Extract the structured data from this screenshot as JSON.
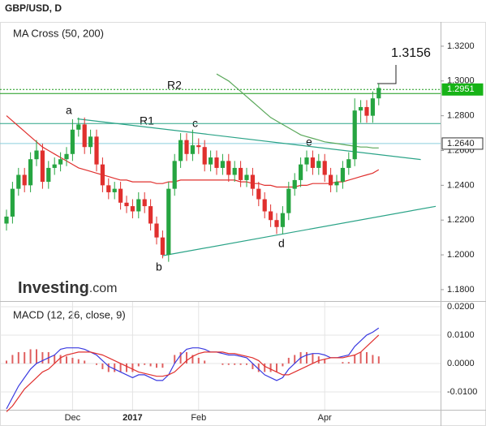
{
  "chart_data": {
    "type": "candlestick",
    "title": "GBP/USD, D",
    "indicator_title": "MA Cross (50, 200)",
    "macd_title": "MACD (12, 26, close, 9)",
    "logo": [
      "Investing",
      ".com"
    ],
    "annotations": [
      "a",
      "b",
      "c",
      "d",
      "e",
      "R1",
      "R2",
      "1.3156"
    ],
    "categories": [
      null,
      null,
      null,
      null,
      null,
      null,
      null,
      null,
      null,
      null,
      null,
      "Dec",
      null,
      null,
      null,
      null,
      null,
      null,
      null,
      null,
      null,
      "2017",
      null,
      null,
      null,
      null,
      null,
      null,
      null,
      null,
      null,
      null,
      "Feb",
      null,
      null,
      null,
      null,
      null,
      null,
      null,
      null,
      null,
      null,
      null,
      null,
      null,
      null,
      null,
      null,
      null,
      null,
      null,
      null,
      "Apr",
      null,
      null,
      null,
      null,
      null,
      null,
      null,
      null,
      null
    ],
    "up_color": "#26a541",
    "down_color": "#e0302e",
    "candles": [
      [
        1.218,
        1.226,
        1.214,
        1.222
      ],
      [
        1.222,
        1.242,
        1.218,
        1.238
      ],
      [
        1.238,
        1.25,
        1.234,
        1.246
      ],
      [
        1.246,
        1.25,
        1.236,
        1.24
      ],
      [
        1.24,
        1.259,
        1.236,
        1.255
      ],
      [
        1.255,
        1.266,
        1.251,
        1.26
      ],
      [
        1.26,
        1.264,
        1.238,
        1.242
      ],
      [
        1.242,
        1.254,
        1.238,
        1.25
      ],
      [
        1.25,
        1.256,
        1.246,
        1.252
      ],
      [
        1.252,
        1.259,
        1.248,
        1.255
      ],
      [
        1.255,
        1.262,
        1.251,
        1.258
      ],
      [
        1.258,
        1.278,
        1.254,
        1.272
      ],
      [
        1.272,
        1.279,
        1.268,
        1.275
      ],
      [
        1.275,
        1.279,
        1.258,
        1.262
      ],
      [
        1.262,
        1.272,
        1.258,
        1.268
      ],
      [
        1.268,
        1.272,
        1.248,
        1.252
      ],
      [
        1.252,
        1.256,
        1.236,
        1.24
      ],
      [
        1.24,
        1.244,
        1.232,
        1.236
      ],
      [
        1.236,
        1.242,
        1.232,
        1.238
      ],
      [
        1.238,
        1.242,
        1.226,
        1.23
      ],
      [
        1.23,
        1.234,
        1.224,
        1.228
      ],
      [
        1.228,
        1.232,
        1.221,
        1.225
      ],
      [
        1.225,
        1.236,
        1.221,
        1.232
      ],
      [
        1.232,
        1.236,
        1.224,
        1.228
      ],
      [
        1.228,
        1.232,
        1.214,
        1.218
      ],
      [
        1.218,
        1.222,
        1.206,
        1.21
      ],
      [
        1.21,
        1.214,
        1.198,
        1.2
      ],
      [
        1.2,
        1.242,
        1.196,
        1.238
      ],
      [
        1.238,
        1.258,
        1.234,
        1.254
      ],
      [
        1.254,
        1.27,
        1.25,
        1.266
      ],
      [
        1.266,
        1.27,
        1.254,
        1.258
      ],
      [
        1.258,
        1.272,
        1.254,
        1.263
      ],
      [
        1.263,
        1.267,
        1.258,
        1.262
      ],
      [
        1.262,
        1.266,
        1.248,
        1.252
      ],
      [
        1.252,
        1.26,
        1.248,
        1.256
      ],
      [
        1.256,
        1.26,
        1.246,
        1.25
      ],
      [
        1.25,
        1.258,
        1.246,
        1.254
      ],
      [
        1.254,
        1.258,
        1.242,
        1.246
      ],
      [
        1.246,
        1.254,
        1.242,
        1.25
      ],
      [
        1.25,
        1.254,
        1.239,
        1.243
      ],
      [
        1.243,
        1.25,
        1.239,
        1.246
      ],
      [
        1.246,
        1.25,
        1.234,
        1.238
      ],
      [
        1.238,
        1.242,
        1.228,
        1.232
      ],
      [
        1.232,
        1.236,
        1.221,
        1.225
      ],
      [
        1.225,
        1.229,
        1.216,
        1.22
      ],
      [
        1.22,
        1.224,
        1.212,
        1.216
      ],
      [
        1.216,
        1.228,
        1.212,
        1.224
      ],
      [
        1.224,
        1.242,
        1.22,
        1.238
      ],
      [
        1.238,
        1.247,
        1.234,
        1.243
      ],
      [
        1.243,
        1.256,
        1.239,
        1.252
      ],
      [
        1.252,
        1.26,
        1.248,
        1.256
      ],
      [
        1.256,
        1.26,
        1.246,
        1.25
      ],
      [
        1.25,
        1.258,
        1.246,
        1.254
      ],
      [
        1.254,
        1.258,
        1.242,
        1.246
      ],
      [
        1.246,
        1.25,
        1.236,
        1.24
      ],
      [
        1.24,
        1.246,
        1.236,
        1.242
      ],
      [
        1.242,
        1.254,
        1.238,
        1.25
      ],
      [
        1.25,
        1.259,
        1.246,
        1.255
      ],
      [
        1.255,
        1.29,
        1.251,
        1.283
      ],
      [
        1.283,
        1.289,
        1.276,
        1.285
      ],
      [
        1.285,
        1.289,
        1.276,
        1.28
      ],
      [
        1.28,
        1.294,
        1.276,
        1.29
      ],
      [
        1.29,
        1.2985,
        1.286,
        1.296
      ]
    ],
    "series": [
      {
        "color": "#e0302e",
        "values": [
          1.28,
          1.277,
          1.274,
          1.271,
          1.268,
          1.265,
          1.262,
          1.26,
          1.258,
          1.256,
          1.254,
          1.252,
          1.25,
          1.249,
          1.248,
          1.247,
          1.246,
          1.245,
          1.244,
          1.243,
          1.243,
          1.242,
          1.242,
          1.242,
          1.242,
          1.241,
          1.241,
          1.242,
          1.242,
          1.243,
          1.243,
          1.243,
          1.243,
          1.243,
          1.243,
          1.243,
          1.243,
          1.243,
          1.243,
          1.242,
          1.242,
          1.241,
          1.241,
          1.24,
          1.24,
          1.239,
          1.239,
          1.239,
          1.239,
          1.24,
          1.24,
          1.241,
          1.241,
          1.241,
          1.241,
          1.242,
          1.242,
          1.243,
          1.244,
          1.245,
          1.246,
          1.247,
          1.249
        ]
      },
      {
        "color": "#5aa85a",
        "values": [
          null,
          null,
          null,
          null,
          null,
          null,
          null,
          null,
          null,
          null,
          null,
          null,
          null,
          null,
          null,
          null,
          null,
          null,
          null,
          null,
          null,
          null,
          null,
          null,
          null,
          null,
          null,
          null,
          null,
          null,
          null,
          null,
          null,
          null,
          null,
          1.304,
          1.302,
          1.3,
          1.297,
          1.294,
          1.291,
          1.288,
          1.285,
          1.282,
          1.279,
          1.277,
          1.275,
          1.273,
          1.271,
          1.269,
          1.268,
          1.267,
          1.266,
          1.265,
          1.2645,
          1.264,
          1.2635,
          1.263,
          1.2625,
          1.262,
          1.262,
          1.2615,
          1.2615
        ]
      }
    ],
    "levels": [
      {
        "value": 1.2951,
        "label": "1.2951",
        "color": "#1a9a1a",
        "dash": true
      },
      {
        "value": 1.2928,
        "color": "#1a9a1a"
      },
      {
        "value": 1.2755,
        "color": "#2aa387"
      },
      {
        "value": 1.264,
        "label": "1.2640",
        "color": "#8ccfdc"
      }
    ],
    "trendlines": [
      {
        "x": [
          11.8,
          69
        ],
        "y": [
          1.2782,
          1.2548
        ],
        "color": "#2aa387"
      },
      {
        "x": [
          26,
          71.5
        ],
        "y": [
          1.1995,
          1.2279
        ],
        "color": "#2aa387"
      }
    ],
    "ylim": [
      1.1739,
      1.3335
    ],
    "yticks": [
      {
        "value": 1.32,
        "label": "1.3200"
      },
      {
        "value": 1.3,
        "label": "1.3000"
      },
      {
        "value": 1.28,
        "label": "1.2800"
      },
      {
        "value": 1.26,
        "label": "1.2600"
      },
      {
        "value": 1.24,
        "label": "1.2400"
      },
      {
        "value": 1.22,
        "label": "1.2200"
      },
      {
        "value": 1.2,
        "label": "1.2000"
      },
      {
        "value": 1.18,
        "label": "1.1800"
      }
    ],
    "macd": {
      "color": "#3a3ae0",
      "values": [
        -0.016,
        -0.012,
        -0.008,
        -0.005,
        -0.002,
        0,
        0.001,
        0.002,
        0.003,
        0.005,
        0.0055,
        0.0055,
        0.0055,
        0.005,
        0.004,
        0.003,
        0.001,
        -0.001,
        -0.002,
        -0.003,
        -0.004,
        -0.005,
        -0.004,
        -0.004,
        -0.005,
        -0.006,
        -0.006,
        -0.004,
        0,
        0.003,
        0.005,
        0.0055,
        0.0055,
        0.005,
        0.004,
        0.004,
        0.0035,
        0.003,
        0.003,
        0.0025,
        0.002,
        0,
        -0.002,
        -0.004,
        -0.005,
        -0.006,
        -0.005,
        -0.002,
        0,
        0.002,
        0.003,
        0.0035,
        0.0035,
        0.003,
        0.002,
        0.002,
        0.0025,
        0.003,
        0.006,
        0.008,
        0.01,
        0.011,
        0.0125
      ]
    },
    "signal": {
      "color": "#e0302e",
      "values": [
        -0.017,
        -0.015,
        -0.012,
        -0.009,
        -0.007,
        -0.005,
        -0.003,
        -0.002,
        0,
        0.002,
        0.003,
        0.0035,
        0.004,
        0.004,
        0.004,
        0.0035,
        0.003,
        0.002,
        0.001,
        0,
        -0.001,
        -0.002,
        -0.003,
        -0.0035,
        -0.004,
        -0.0045,
        -0.0045,
        -0.004,
        -0.003,
        -0.001,
        0.001,
        0.0025,
        0.0035,
        0.004,
        0.004,
        0.004,
        0.004,
        0.0035,
        0.0035,
        0.003,
        0.0025,
        0.002,
        0.001,
        -0.001,
        -0.002,
        -0.003,
        -0.004,
        -0.004,
        -0.003,
        -0.002,
        -0.001,
        0,
        0.001,
        0.0015,
        0.002,
        0.002,
        0.002,
        0.0025,
        0.003,
        0.004,
        0.006,
        0.008,
        0.01
      ]
    },
    "histogram": {
      "color": "#e06060",
      "values": [
        0.001,
        0.003,
        0.004,
        0.004,
        0.005,
        0.005,
        0.004,
        0.004,
        0.003,
        0.003,
        0.0025,
        0.002,
        0.0015,
        0.001,
        0,
        -0.0005,
        -0.002,
        -0.003,
        -0.003,
        -0.003,
        -0.003,
        -0.003,
        -0.001,
        -0.0005,
        -0.001,
        -0.0015,
        -0.0015,
        0,
        0.003,
        0.004,
        0.004,
        0.003,
        0.002,
        0.001,
        0,
        0,
        -0.0005,
        -0.0005,
        -0.0005,
        -0.0005,
        -0.0005,
        -0.002,
        -0.003,
        -0.003,
        -0.003,
        -0.003,
        -0.001,
        0.002,
        0.003,
        0.004,
        0.004,
        0.0035,
        0.0025,
        0.0015,
        0,
        0,
        0.0005,
        0.0005,
        0.003,
        0.004,
        0.004,
        0.003,
        0.0025
      ]
    },
    "macd_ylim": [
      -0.0163,
      0.0217
    ],
    "macd_yticks": [
      {
        "value": 0.02,
        "label": "0.0200"
      },
      {
        "value": 0.01,
        "label": "0.0100"
      },
      {
        "value": 0,
        "label": "0.0000"
      },
      {
        "value": -0.01,
        "label": "-0.0100"
      }
    ]
  }
}
